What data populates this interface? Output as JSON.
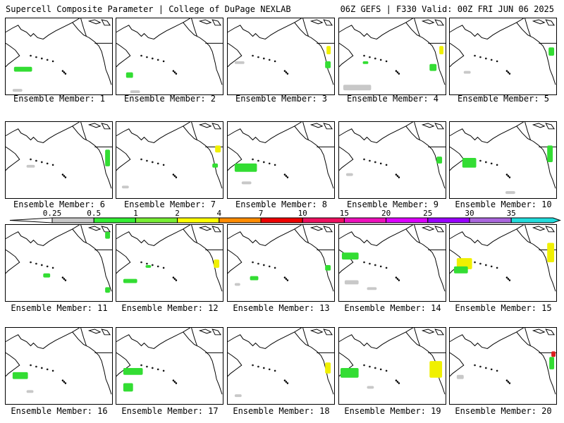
{
  "header": {
    "left": "Supercell Composite Parameter | College of DuPage NEXLAB",
    "right": "06Z GEFS | F330 Valid: 00Z FRI JUN 06 2025"
  },
  "caption_prefix": "Ensemble Member:",
  "members": [
    {
      "id": "1",
      "blobs": [
        {
          "x": 12,
          "y": 70,
          "w": 26,
          "h": 7,
          "c": "green"
        },
        {
          "x": 10,
          "y": 102,
          "w": 14,
          "h": 4,
          "c": "gray"
        }
      ]
    },
    {
      "id": "2",
      "blobs": [
        {
          "x": 14,
          "y": 78,
          "w": 10,
          "h": 8,
          "c": "green"
        },
        {
          "x": 20,
          "y": 104,
          "w": 14,
          "h": 4,
          "c": "gray"
        }
      ]
    },
    {
      "id": "3",
      "blobs": [
        {
          "x": 142,
          "y": 40,
          "w": 6,
          "h": 12,
          "c": "yellow"
        },
        {
          "x": 140,
          "y": 62,
          "w": 8,
          "h": 10,
          "c": "green"
        },
        {
          "x": 10,
          "y": 62,
          "w": 14,
          "h": 4,
          "c": "gray"
        }
      ]
    },
    {
      "id": "4",
      "blobs": [
        {
          "x": 144,
          "y": 40,
          "w": 6,
          "h": 12,
          "c": "yellow"
        },
        {
          "x": 130,
          "y": 66,
          "w": 10,
          "h": 10,
          "c": "green"
        },
        {
          "x": 6,
          "y": 96,
          "w": 40,
          "h": 8,
          "c": "gray"
        },
        {
          "x": 34,
          "y": 62,
          "w": 8,
          "h": 4,
          "c": "green"
        }
      ]
    },
    {
      "id": "5",
      "blobs": [
        {
          "x": 142,
          "y": 42,
          "w": 8,
          "h": 12,
          "c": "green"
        },
        {
          "x": 20,
          "y": 76,
          "w": 10,
          "h": 4,
          "c": "gray"
        }
      ]
    },
    {
      "id": "6",
      "blobs": [
        {
          "x": 143,
          "y": 40,
          "w": 7,
          "h": 24,
          "c": "green"
        },
        {
          "x": 30,
          "y": 62,
          "w": 12,
          "h": 4,
          "c": "gray"
        }
      ]
    },
    {
      "id": "7",
      "blobs": [
        {
          "x": 142,
          "y": 34,
          "w": 8,
          "h": 10,
          "c": "yellow"
        },
        {
          "x": 138,
          "y": 60,
          "w": 8,
          "h": 6,
          "c": "green"
        },
        {
          "x": 8,
          "y": 92,
          "w": 10,
          "h": 4,
          "c": "gray"
        }
      ]
    },
    {
      "id": "8",
      "blobs": [
        {
          "x": 10,
          "y": 60,
          "w": 32,
          "h": 12,
          "c": "green"
        },
        {
          "x": 20,
          "y": 86,
          "w": 14,
          "h": 4,
          "c": "gray"
        }
      ]
    },
    {
      "id": "9",
      "blobs": [
        {
          "x": 140,
          "y": 50,
          "w": 8,
          "h": 10,
          "c": "green"
        },
        {
          "x": 10,
          "y": 74,
          "w": 10,
          "h": 4,
          "c": "gray"
        }
      ]
    },
    {
      "id": "10",
      "blobs": [
        {
          "x": 140,
          "y": 34,
          "w": 8,
          "h": 24,
          "c": "green"
        },
        {
          "x": 18,
          "y": 52,
          "w": 20,
          "h": 14,
          "c": "green"
        },
        {
          "x": 80,
          "y": 100,
          "w": 14,
          "h": 4,
          "c": "gray"
        }
      ]
    },
    {
      "id": "11",
      "blobs": [
        {
          "x": 143,
          "y": 10,
          "w": 7,
          "h": 10,
          "c": "green"
        },
        {
          "x": 143,
          "y": 90,
          "w": 7,
          "h": 8,
          "c": "green"
        },
        {
          "x": 54,
          "y": 70,
          "w": 10,
          "h": 6,
          "c": "green"
        }
      ]
    },
    {
      "id": "12",
      "blobs": [
        {
          "x": 140,
          "y": 50,
          "w": 8,
          "h": 12,
          "c": "yellow"
        },
        {
          "x": 10,
          "y": 78,
          "w": 20,
          "h": 6,
          "c": "green"
        },
        {
          "x": 42,
          "y": 58,
          "w": 8,
          "h": 4,
          "c": "green"
        }
      ]
    },
    {
      "id": "13",
      "blobs": [
        {
          "x": 140,
          "y": 58,
          "w": 8,
          "h": 8,
          "c": "green"
        },
        {
          "x": 32,
          "y": 74,
          "w": 12,
          "h": 6,
          "c": "green"
        },
        {
          "x": 10,
          "y": 84,
          "w": 8,
          "h": 4,
          "c": "gray"
        }
      ]
    },
    {
      "id": "14",
      "blobs": [
        {
          "x": 4,
          "y": 40,
          "w": 24,
          "h": 10,
          "c": "green"
        },
        {
          "x": 8,
          "y": 80,
          "w": 20,
          "h": 6,
          "c": "gray"
        },
        {
          "x": 40,
          "y": 90,
          "w": 14,
          "h": 4,
          "c": "gray"
        }
      ]
    },
    {
      "id": "15",
      "blobs": [
        {
          "x": 140,
          "y": 26,
          "w": 10,
          "h": 28,
          "c": "yellow"
        },
        {
          "x": 10,
          "y": 48,
          "w": 22,
          "h": 16,
          "c": "yellow"
        },
        {
          "x": 6,
          "y": 60,
          "w": 20,
          "h": 10,
          "c": "green"
        }
      ]
    },
    {
      "id": "16",
      "blobs": [
        {
          "x": 10,
          "y": 64,
          "w": 22,
          "h": 10,
          "c": "green"
        },
        {
          "x": 30,
          "y": 90,
          "w": 10,
          "h": 4,
          "c": "gray"
        }
      ]
    },
    {
      "id": "17",
      "blobs": [
        {
          "x": 10,
          "y": 58,
          "w": 28,
          "h": 10,
          "c": "green"
        },
        {
          "x": 10,
          "y": 80,
          "w": 14,
          "h": 12,
          "c": "green"
        }
      ]
    },
    {
      "id": "18",
      "blobs": [
        {
          "x": 140,
          "y": 50,
          "w": 8,
          "h": 16,
          "c": "yellow"
        },
        {
          "x": 10,
          "y": 96,
          "w": 10,
          "h": 4,
          "c": "gray"
        }
      ]
    },
    {
      "id": "19",
      "blobs": [
        {
          "x": 2,
          "y": 58,
          "w": 26,
          "h": 14,
          "c": "green"
        },
        {
          "x": 130,
          "y": 48,
          "w": 18,
          "h": 24,
          "c": "yellow"
        },
        {
          "x": 40,
          "y": 84,
          "w": 10,
          "h": 4,
          "c": "gray"
        }
      ]
    },
    {
      "id": "20",
      "blobs": [
        {
          "x": 146,
          "y": 34,
          "w": 6,
          "h": 8,
          "c": "red"
        },
        {
          "x": 143,
          "y": 42,
          "w": 7,
          "h": 18,
          "c": "green"
        },
        {
          "x": 10,
          "y": 68,
          "w": 10,
          "h": 6,
          "c": "gray"
        }
      ]
    }
  ],
  "blob_colors": {
    "gray": "#c8c8c8",
    "green": "#33dd33",
    "yellow": "#f0f000",
    "red": "#dd2020"
  },
  "colorbar": {
    "labels": [
      "0.25",
      "0.5",
      "1",
      "2",
      "4",
      "7",
      "10",
      "15",
      "20",
      "25",
      "30",
      "35"
    ],
    "colors": [
      "#c8c8c8",
      "#33ee33",
      "#77ee33",
      "#ffff00",
      "#ff8c00",
      "#ee0000",
      "#ee1060",
      "#ee10bb",
      "#dd00ff",
      "#9900ff",
      "#aa66dd",
      "#22dddd"
    ]
  }
}
